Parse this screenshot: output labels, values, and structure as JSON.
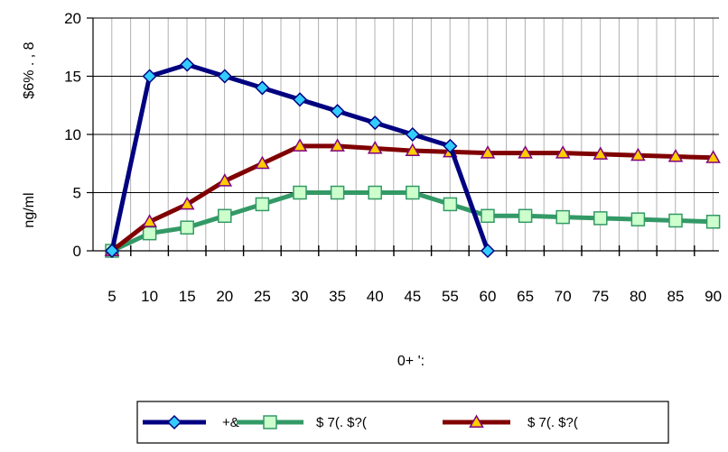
{
  "chart_data": {
    "type": "line",
    "categories": [
      "5",
      "10",
      "15",
      "20",
      "25",
      "30",
      "35",
      "40",
      "45",
      "55",
      "60",
      "65",
      "70",
      "75",
      "80",
      "85",
      "90"
    ],
    "series": [
      {
        "name": "+&",
        "color": "#000080",
        "marker": "diamond",
        "marker_fill": "#33ccff",
        "values": [
          0,
          15,
          16,
          15,
          14,
          13,
          12,
          11,
          10,
          9,
          0,
          null,
          null,
          null,
          null,
          null,
          null
        ]
      },
      {
        "name": "$ 7(. $?(",
        "color": "#339966",
        "marker": "square",
        "marker_fill": "#ccffcc",
        "values": [
          0,
          1.5,
          2,
          3,
          4,
          5,
          5,
          5,
          5,
          4,
          3,
          3,
          2.9,
          2.8,
          2.7,
          2.6,
          2.5
        ]
      },
      {
        "name": "$ 7(. $?(",
        "color": "#800000",
        "marker": "triangle",
        "marker_fill": "#ffcc00",
        "values": [
          0,
          2.5,
          4,
          6,
          7.5,
          9,
          9,
          8.8,
          8.6,
          8.5,
          8.4,
          8.4,
          8.4,
          8.3,
          8.2,
          8.1,
          8
        ]
      }
    ],
    "yticks": [
      0,
      5,
      10,
      15,
      20
    ],
    "ylim": [
      0,
      20
    ],
    "ylabel_top": "$6% . , 8",
    "ylabel_bottom": "ng/ml",
    "xlabel": "0+ ':",
    "grid": {
      "vertical": true,
      "horizontal": true
    },
    "legend_position": "bottom"
  }
}
